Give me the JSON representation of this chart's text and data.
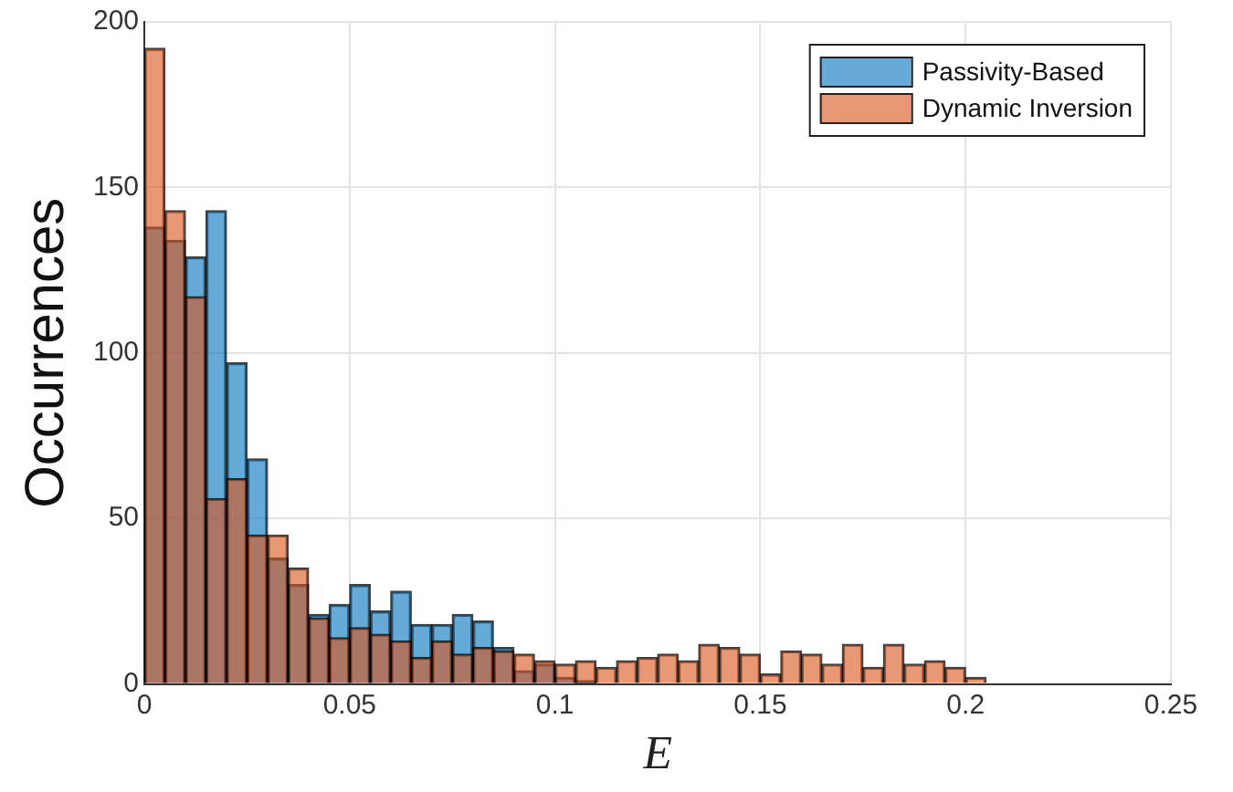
{
  "chart_data": {
    "type": "histogram",
    "xlabel": "E",
    "ylabel": "Occurrences",
    "bins": [
      0,
      0.005,
      0.01,
      0.015,
      0.02,
      0.025,
      0.03,
      0.035,
      0.04,
      0.045,
      0.05,
      0.055,
      0.06,
      0.065,
      0.07,
      0.075,
      0.08,
      0.085,
      0.09,
      0.095,
      0.1,
      0.105,
      0.11,
      0.115,
      0.12,
      0.125,
      0.13,
      0.135,
      0.14,
      0.145,
      0.15,
      0.155,
      0.16,
      0.165,
      0.17,
      0.175,
      0.18,
      0.185,
      0.19,
      0.195,
      0.2,
      0.205,
      0.21,
      0.215,
      0.22,
      0.225,
      0.23,
      0.235,
      0.24,
      0.245,
      0.25
    ],
    "series": [
      {
        "name": "Passivity-Based",
        "color": "#0072bd",
        "values": [
          138,
          134,
          129,
          143,
          97,
          68,
          38,
          30,
          21,
          24,
          30,
          22,
          28,
          18,
          18,
          21,
          19,
          11,
          4,
          6,
          2,
          1,
          0,
          0,
          0,
          0,
          0,
          0,
          0,
          0,
          0,
          0,
          0,
          0,
          0,
          0,
          0,
          0,
          0,
          0,
          0,
          0,
          0,
          0,
          0,
          0,
          0,
          0,
          0,
          0
        ]
      },
      {
        "name": "Dynamic Inversion",
        "color": "#d95319",
        "values": [
          192,
          143,
          117,
          56,
          62,
          45,
          45,
          35,
          20,
          14,
          17,
          15,
          13,
          8,
          13,
          9,
          11,
          10,
          9,
          7,
          6,
          7,
          5,
          7,
          8,
          9,
          7,
          12,
          11,
          9,
          3,
          10,
          9,
          6,
          12,
          5,
          12,
          6,
          7,
          5,
          2,
          0,
          0,
          0,
          0,
          0,
          0,
          0,
          0,
          0
        ]
      }
    ],
    "xlim": [
      0,
      0.25
    ],
    "xticks": [
      0,
      0.05,
      0.1,
      0.15,
      0.2,
      0.25
    ],
    "ylim": [
      0,
      200
    ],
    "yticks": [
      0,
      50,
      100,
      150,
      200
    ],
    "grid": true,
    "legend": "top right"
  }
}
